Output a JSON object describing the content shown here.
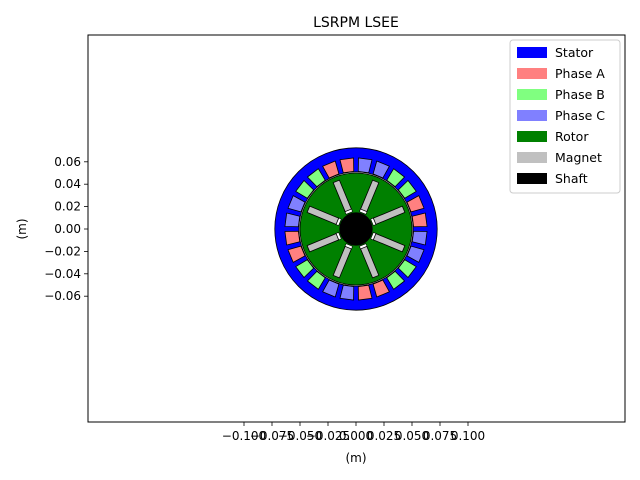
{
  "chart_data": {
    "type": "diagram",
    "title": "LSRPM LSEE",
    "xlabel": "(m)",
    "ylabel": "(m)",
    "xlim": [
      -0.11,
      0.11
    ],
    "ylim": [
      -0.078,
      0.078
    ],
    "aspect": "equal",
    "x_ticks": [
      -0.1,
      -0.075,
      -0.05,
      -0.025,
      0.0,
      0.025,
      0.05,
      0.075,
      0.1
    ],
    "x_tick_labels": [
      "−0.100",
      "−0.075",
      "−0.050",
      "−0.025",
      "0.000",
      "0.025",
      "0.050",
      "0.075",
      "0.100"
    ],
    "y_ticks": [
      0.06,
      0.04,
      0.02,
      0.0,
      -0.02,
      -0.04,
      -0.06
    ],
    "y_tick_labels": [
      "0.06",
      "0.04",
      "0.02",
      "0.00",
      "−0.02",
      "−0.04",
      "−0.06"
    ],
    "grid": false,
    "legend_position": "top-right",
    "legend": [
      {
        "label": "Stator",
        "color": "#0000ff"
      },
      {
        "label": "Phase A",
        "color": "#ff8080"
      },
      {
        "label": "Phase B",
        "color": "#80ff80"
      },
      {
        "label": "Phase C",
        "color": "#8080ff"
      },
      {
        "label": "Rotor",
        "color": "#008000"
      },
      {
        "label": "Magnet",
        "color": "#c0c0c0"
      },
      {
        "label": "Shaft",
        "color": "#000000"
      }
    ],
    "geometry": {
      "stator_outer_radius": 0.0725,
      "stator_inner_radius": 0.051,
      "rotor_outer_radius": 0.05,
      "shaft_radius": 0.0145,
      "slots": 24,
      "slot_angular_width_deg": 10.5,
      "slot_inner_radius": 0.0515,
      "slot_outer_radius": 0.0635,
      "slot_phase_pattern": [
        "A",
        "A",
        "B",
        "B",
        "C",
        "C",
        "A",
        "A",
        "B",
        "B",
        "C",
        "C",
        "A",
        "A",
        "B",
        "B",
        "C",
        "C",
        "A",
        "A",
        "B",
        "B",
        "C",
        "C"
      ],
      "slot_start_angle_deg": 7.5,
      "magnet_count": 8,
      "magnet_angles_deg": [
        22.5,
        67.5,
        112.5,
        157.5,
        202.5,
        247.5,
        292.5,
        337.5
      ],
      "magnet_inner_radius": 0.018,
      "magnet_outer_radius": 0.046,
      "magnet_width": 0.006
    }
  }
}
